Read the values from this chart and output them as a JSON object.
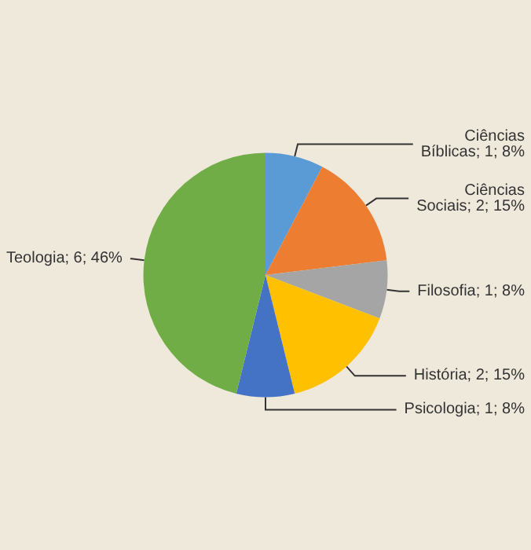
{
  "chart_data": {
    "type": "pie",
    "categories": [
      "Ciências Bíblicas",
      "Ciências Sociais",
      "Filosofia",
      "História",
      "Psicologia",
      "Teologia"
    ],
    "values": [
      1,
      2,
      1,
      2,
      1,
      6
    ],
    "value_labels": [
      "1; 8%",
      "2; 15%",
      "1; 8%",
      "2; 15%",
      "1; 8%",
      "6; 46%"
    ],
    "colors": [
      "#5b9bd5",
      "#ed7d31",
      "#a5a5a5",
      "#ffc000",
      "#4472c4",
      "#70ad47"
    ],
    "legend": false
  }
}
